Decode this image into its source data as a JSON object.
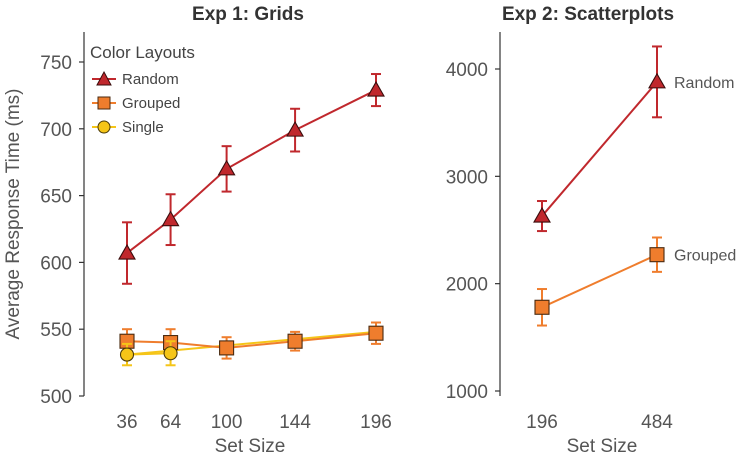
{
  "chart_data": [
    {
      "type": "line",
      "title": "Exp 1: Grids",
      "xlabel": "Set Size",
      "ylabel": "Average Response Time (ms)",
      "x": [
        36,
        64,
        100,
        144,
        196
      ],
      "xticks": [
        "36",
        "64",
        "100",
        "144",
        "196"
      ],
      "ylim": [
        500,
        760
      ],
      "yticks": [
        "500",
        "550",
        "600",
        "650",
        "700",
        "750"
      ],
      "grid": false,
      "legend": {
        "title": "Color Layouts",
        "position": "top-left"
      },
      "series": [
        {
          "name": "Random",
          "marker": "triangle",
          "color": "#c0282d",
          "values": [
            607,
            632,
            670,
            699,
            729
          ],
          "errors": [
            23,
            19,
            17,
            16,
            12
          ]
        },
        {
          "name": "Grouped",
          "marker": "square",
          "color": "#ef7d2d",
          "values": [
            541,
            540,
            536,
            541,
            547
          ],
          "errors": [
            9,
            10,
            8,
            7,
            8
          ]
        },
        {
          "name": "Single",
          "marker": "circle",
          "color": "#f5c518",
          "values": [
            531,
            532,
            null,
            null,
            null
          ],
          "errors": [
            8,
            9,
            null,
            null,
            null
          ]
        }
      ],
      "trend_lines": [
        {
          "series": "Single",
          "color": "#f5c518",
          "x": [
            36,
            196
          ],
          "values": [
            531,
            548
          ]
        }
      ]
    },
    {
      "type": "line",
      "title": "Exp 2: Scatterplots",
      "xlabel": "Set Size",
      "ylabel": "",
      "x": [
        196,
        484
      ],
      "xticks": [
        "196",
        "484"
      ],
      "ylim": [
        1000,
        4350
      ],
      "yticks": [
        "1000",
        "2000",
        "3000",
        "4000"
      ],
      "grid": false,
      "series": [
        {
          "name": "Random",
          "marker": "triangle",
          "color": "#c0282d",
          "values": [
            2630,
            3880
          ],
          "errors": [
            140,
            330
          ]
        },
        {
          "name": "Grouped",
          "marker": "square",
          "color": "#ef7d2d",
          "values": [
            1780,
            2270
          ],
          "errors": [
            170,
            160
          ]
        }
      ]
    }
  ]
}
